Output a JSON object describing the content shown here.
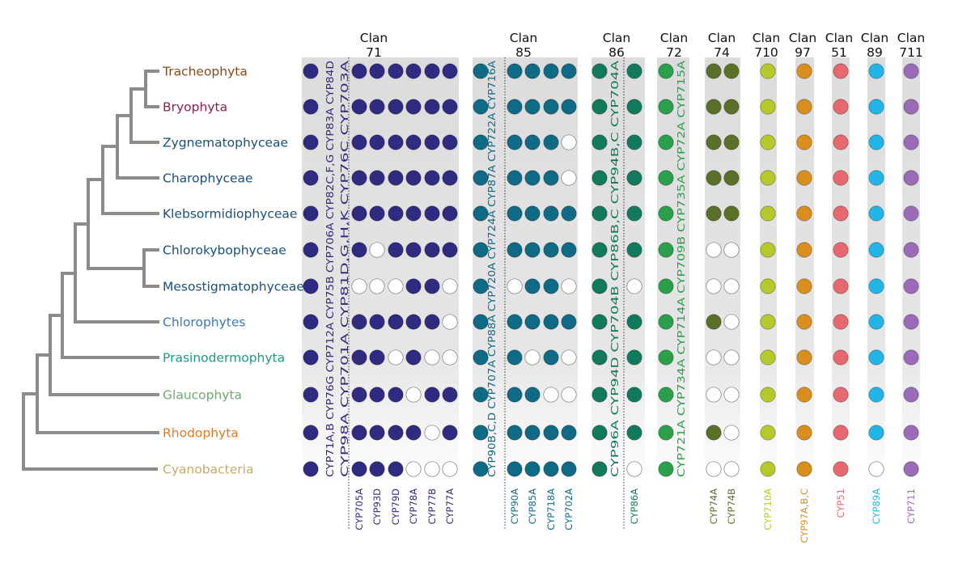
{
  "taxa": [
    {
      "name": "Tracheophyta",
      "color": "#8a4a17"
    },
    {
      "name": "Bryophyta",
      "color": "#8b1f4f"
    },
    {
      "name": "Zygnematophyceae",
      "color": "#1a4f7a"
    },
    {
      "name": "Charophyceae",
      "color": "#1a4f7a"
    },
    {
      "name": "Klebsormidiophyceae",
      "color": "#1a4f7a"
    },
    {
      "name": "Chlorokybophyceae",
      "color": "#1a4f7a"
    },
    {
      "name": "Mesostigmatophyceae",
      "color": "#1a4f7a"
    },
    {
      "name": "Chlorophytes",
      "color": "#3a78b8"
    },
    {
      "name": "Prasinodermophyta",
      "color": "#17a07a"
    },
    {
      "name": "Glaucophyta",
      "color": "#72a874"
    },
    {
      "name": "Rhodophyta",
      "color": "#e07a22"
    },
    {
      "name": "Cyanobacteria",
      "color": "#c9aa6a"
    }
  ],
  "clans": [
    {
      "title": "Clan",
      "number": "71",
      "color": "#2e2b80",
      "vertical_label": [
        "CYP71A,B CYP76G CYP712A CYP75B CYP706A CYP82C,F,G CYP83A CYP84D",
        "CYP98A CYP701A CYP81D,G,H,K CYP76C CYP703A"
      ],
      "columns": [
        {
          "label": "",
          "presence": [
            1,
            1,
            1,
            1,
            1,
            1,
            1,
            1,
            1,
            1,
            1,
            1
          ]
        },
        {
          "label": "CYP705A",
          "presence": [
            1,
            1,
            1,
            1,
            1,
            1,
            0,
            1,
            1,
            1,
            1,
            1
          ]
        },
        {
          "label": "CYP93D",
          "presence": [
            1,
            1,
            1,
            1,
            1,
            0,
            0,
            1,
            1,
            1,
            1,
            1
          ]
        },
        {
          "label": "CYP79D",
          "presence": [
            1,
            1,
            1,
            1,
            1,
            1,
            0,
            1,
            0,
            1,
            1,
            1
          ]
        },
        {
          "label": "CYP78A",
          "presence": [
            1,
            1,
            1,
            1,
            1,
            1,
            1,
            1,
            1,
            0,
            1,
            0
          ]
        },
        {
          "label": "CYP77B",
          "presence": [
            1,
            1,
            1,
            1,
            1,
            1,
            1,
            1,
            0,
            1,
            0,
            0
          ]
        },
        {
          "label": "CYP77A",
          "presence": [
            1,
            1,
            1,
            1,
            1,
            1,
            0,
            0,
            0,
            1,
            1,
            0
          ]
        }
      ]
    },
    {
      "title": "Clan",
      "number": "85",
      "color": "#0f6a86",
      "vertical_label": [
        "CYP90B,C,D CYP707A CYP88A CYP720A CYP724A CYP87A CYP722A CYP716A"
      ],
      "columns": [
        {
          "label": "",
          "presence": [
            1,
            1,
            1,
            1,
            1,
            1,
            1,
            1,
            1,
            1,
            1,
            1
          ]
        },
        {
          "label": "CYP90A",
          "presence": [
            1,
            1,
            1,
            1,
            1,
            1,
            0,
            1,
            1,
            1,
            1,
            1
          ]
        },
        {
          "label": "CYP85A",
          "presence": [
            1,
            1,
            1,
            1,
            1,
            1,
            1,
            1,
            0,
            1,
            1,
            1
          ]
        },
        {
          "label": "CYP718A",
          "presence": [
            1,
            1,
            1,
            1,
            1,
            1,
            1,
            1,
            1,
            0,
            1,
            1
          ]
        },
        {
          "label": "CYP702A",
          "presence": [
            1,
            1,
            0,
            0,
            1,
            1,
            0,
            1,
            0,
            0,
            1,
            1
          ]
        }
      ]
    },
    {
      "title": "Clan",
      "number": "86",
      "color": "#127a5c",
      "vertical_label": [
        "CYP96A CYP94D CYP704B CYP86B,C CYP94B,C CYP704A"
      ],
      "columns": [
        {
          "label": "",
          "presence": [
            1,
            1,
            1,
            1,
            1,
            1,
            1,
            1,
            1,
            1,
            1,
            1
          ]
        },
        {
          "label": "CYP86A",
          "presence": [
            1,
            1,
            1,
            1,
            1,
            1,
            0,
            1,
            1,
            1,
            1,
            0
          ]
        }
      ]
    },
    {
      "title": "Clan",
      "number": "72",
      "color": "#2aa04a",
      "vertical_label": [
        "CYP721A CYP734A CYP714A CYP709B CYP735A CYP72A CYP715A"
      ],
      "columns": [
        {
          "label": "",
          "presence": [
            1,
            1,
            1,
            1,
            1,
            1,
            1,
            1,
            1,
            1,
            1,
            1
          ]
        }
      ]
    },
    {
      "title": "Clan",
      "number": "74",
      "color": "#5a7028",
      "vertical_label": [],
      "columns": [
        {
          "label": "CYP74A",
          "presence": [
            1,
            1,
            1,
            1,
            1,
            0,
            0,
            1,
            0,
            0,
            1,
            0
          ]
        },
        {
          "label": "CYP74B",
          "presence": [
            1,
            1,
            1,
            1,
            1,
            0,
            0,
            0,
            0,
            0,
            0,
            0
          ]
        }
      ]
    },
    {
      "title": "Clan",
      "number": "710",
      "color": "#b7c92a",
      "vertical_label": [],
      "columns": [
        {
          "label": "CYP710A",
          "presence": [
            1,
            1,
            1,
            1,
            1,
            1,
            1,
            1,
            1,
            1,
            1,
            1
          ]
        }
      ]
    },
    {
      "title": "Clan",
      "number": "97",
      "color": "#d98e1e",
      "vertical_label": [],
      "columns": [
        {
          "label": "CYP97A,B,C",
          "presence": [
            1,
            1,
            1,
            1,
            1,
            1,
            1,
            1,
            1,
            1,
            1,
            1
          ]
        }
      ]
    },
    {
      "title": "Clan",
      "number": "51",
      "color": "#e86870",
      "vertical_label": [],
      "columns": [
        {
          "label": "CYP51",
          "presence": [
            1,
            1,
            1,
            1,
            1,
            1,
            1,
            1,
            1,
            1,
            1,
            1
          ]
        }
      ]
    },
    {
      "title": "Clan",
      "number": "89",
      "color": "#22b5e8",
      "vertical_label": [],
      "columns": [
        {
          "label": "CYP89A",
          "presence": [
            1,
            1,
            1,
            1,
            1,
            1,
            1,
            1,
            1,
            1,
            1,
            0
          ]
        }
      ]
    },
    {
      "title": "Clan",
      "number": "711",
      "color": "#9b6ab8",
      "vertical_label": [],
      "columns": [
        {
          "label": "CYP711",
          "presence": [
            1,
            1,
            1,
            1,
            1,
            1,
            1,
            1,
            1,
            1,
            1,
            1
          ]
        }
      ]
    }
  ]
}
